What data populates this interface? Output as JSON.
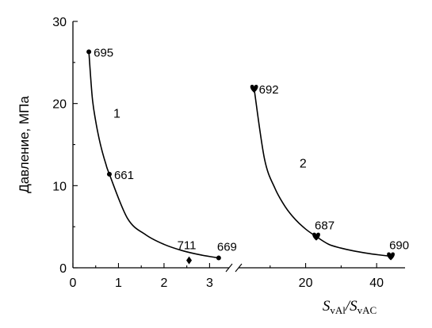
{
  "chart_data": {
    "type": "scatter",
    "ylabel": "Давление, МПа",
    "xlabel": {
      "parts": [
        {
          "text": "S",
          "role": "main"
        },
        {
          "text": "vAl",
          "role": "sub"
        },
        {
          "text": "/",
          "role": "main"
        },
        {
          "text": "S",
          "role": "main"
        },
        {
          "text": "vAC",
          "role": "sub"
        }
      ]
    },
    "ylim": [
      0,
      30
    ],
    "yticks": [
      0,
      10,
      20,
      30
    ],
    "ytick_labels": [
      "0",
      "10",
      "20",
      "30"
    ],
    "x_axis_break": true,
    "segments": [
      {
        "xlim": [
          0,
          3.55
        ],
        "xticks": [
          0,
          1,
          2,
          3
        ],
        "xtick_labels": [
          "0",
          "1",
          "2",
          "3"
        ]
      },
      {
        "xlim": [
          0,
          48
        ],
        "xticks": [
          20,
          40
        ],
        "xtick_labels": [
          "20",
          "40"
        ]
      }
    ],
    "series": [
      {
        "curve_label": "1",
        "segment": 0,
        "marker": "circle",
        "points": [
          {
            "x": 0.35,
            "y": 26.3,
            "label": "695"
          },
          {
            "x": 0.8,
            "y": 11.4,
            "label": "661"
          },
          {
            "x": 3.2,
            "y": 1.2,
            "label": "669"
          }
        ]
      },
      {
        "curve_label": "2",
        "segment": 1,
        "marker": "heart",
        "points": [
          {
            "x": 5.5,
            "y": 21.8,
            "label": "692"
          },
          {
            "x": 23,
            "y": 3.8,
            "label": "687"
          },
          {
            "x": 44,
            "y": 1.4,
            "label": "690"
          }
        ]
      },
      {
        "curve_label": "",
        "segment": 0,
        "marker": "diamond",
        "points": [
          {
            "x": 2.55,
            "y": 0.9,
            "label": "711"
          }
        ]
      }
    ]
  }
}
